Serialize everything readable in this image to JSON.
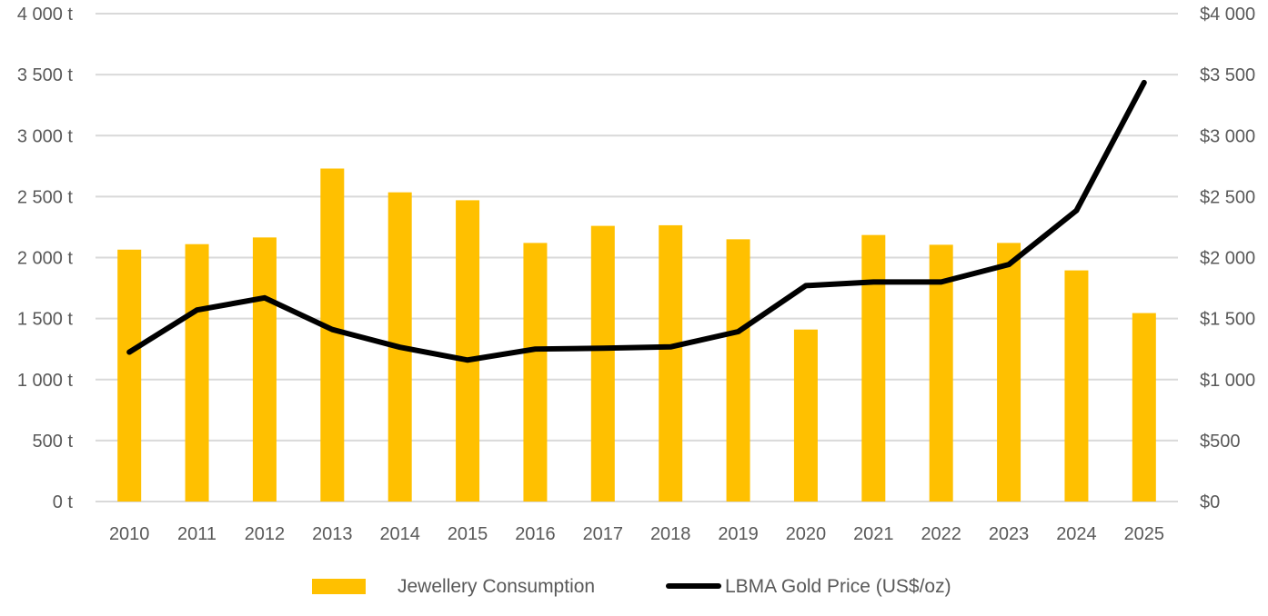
{
  "chart_data": {
    "type": "bar",
    "title": "",
    "xlabel": "",
    "ylabel": "",
    "categories": [
      "2010",
      "2011",
      "2012",
      "2013",
      "2014",
      "2015",
      "2016",
      "2017",
      "2018",
      "2019",
      "2020",
      "2021",
      "2022",
      "2023",
      "2024",
      "2025"
    ],
    "series": [
      {
        "name": "Jewellery Consumption",
        "type": "bar",
        "axis": "left",
        "color": "#FFC000",
        "values": [
          2065,
          2110,
          2165,
          2730,
          2535,
          2470,
          2120,
          2260,
          2265,
          2150,
          1410,
          2185,
          2105,
          2120,
          1895,
          1545
        ]
      },
      {
        "name": "LBMA Gold Price (US$/oz)",
        "type": "line",
        "axis": "right",
        "color": "#000000",
        "values": [
          1225,
          1570,
          1670,
          1410,
          1265,
          1160,
          1250,
          1257,
          1268,
          1393,
          1770,
          1800,
          1800,
          1943,
          2386,
          3435
        ]
      }
    ],
    "y_left": {
      "ylim": [
        0,
        4000
      ],
      "ticks": [
        0,
        500,
        1000,
        1500,
        2000,
        2500,
        3000,
        3500,
        4000
      ],
      "tick_labels": [
        "0 t",
        "500 t",
        "1 000 t",
        "1 500 t",
        "2 000 t",
        "2 500 t",
        "3 000 t",
        "3 500 t",
        "4 000 t"
      ]
    },
    "y_right": {
      "ylim": [
        0,
        4000
      ],
      "ticks": [
        0,
        500,
        1000,
        1500,
        2000,
        2500,
        3000,
        3500,
        4000
      ],
      "tick_labels": [
        "$0",
        "$500",
        "$1 000",
        "$1 500",
        "$2 000",
        "$2 500",
        "$3 000",
        "$3 500",
        "$4 000"
      ]
    },
    "grid": true,
    "legend": {
      "position": "bottom",
      "entries": [
        "Jewellery Consumption",
        "LBMA Gold Price (US$/oz)"
      ]
    }
  },
  "colors": {
    "bar": "#FFC000",
    "line": "#000000",
    "grid": "#D9D9D9",
    "text": "#595959"
  }
}
